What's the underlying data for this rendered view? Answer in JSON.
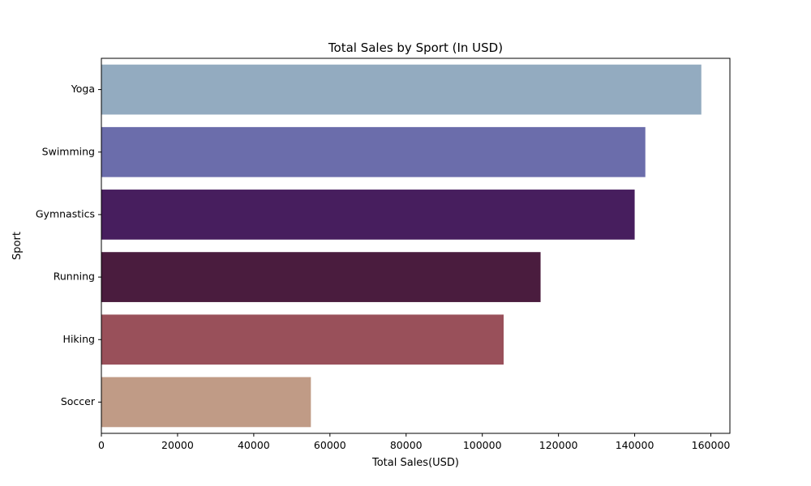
{
  "chart_data": {
    "type": "bar",
    "orientation": "horizontal",
    "title": "Total Sales by Sport (In USD)",
    "xlabel": "Total Sales(USD)",
    "ylabel": "Sport",
    "categories": [
      "Yoga",
      "Swimming",
      "Gymnastics",
      "Running",
      "Hiking",
      "Soccer"
    ],
    "values": [
      157500,
      142800,
      140000,
      115300,
      105600,
      55000
    ],
    "colors": [
      "#93abc0",
      "#6b6dab",
      "#471e5e",
      "#4a1c3e",
      "#99505a",
      "#c09b86"
    ],
    "xlim": [
      0,
      165000
    ],
    "xticks": [
      0,
      20000,
      40000,
      60000,
      80000,
      100000,
      120000,
      140000,
      160000
    ],
    "xtick_labels": [
      "0",
      "20000",
      "40000",
      "60000",
      "80000",
      "100000",
      "120000",
      "140000",
      "160000"
    ],
    "grid": false,
    "legend": "none"
  }
}
